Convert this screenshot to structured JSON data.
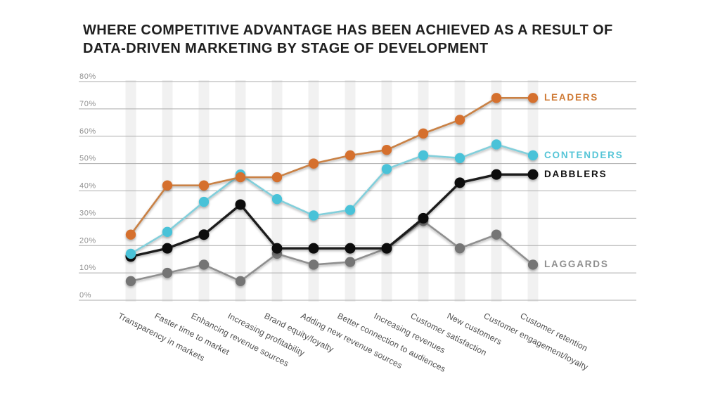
{
  "title": {
    "line1": "WHERE COMPETITIVE ADVANTAGE HAS BEEN ACHIEVED AS A RESULT OF",
    "line2": "DATA-DRIVEN MARKETING BY STAGE OF DEVELOPMENT"
  },
  "colors": {
    "title_text": "#1f1f1f",
    "gridline": "#ababab",
    "ytick_text": "#8f8f8f",
    "xlabel_text": "#4f4f4f",
    "category_band": "#ececec"
  },
  "chart_data": {
    "type": "line",
    "title": "Where competitive advantage has been achieved as a result of data-driven marketing by stage of development",
    "xlabel": "",
    "ylabel": "",
    "ylim": [
      0,
      80
    ],
    "grid": true,
    "legend_position": "right-of-last-point",
    "ytick_labels": [
      "0%",
      "10%",
      "20%",
      "30%",
      "40%",
      "50%",
      "60%",
      "70%",
      "80%"
    ],
    "categories": [
      "Transparency in markets",
      "Faster time to market",
      "Enhancing revenue sources",
      "Increasing profitability",
      "Brand equity/loyalty",
      "Adding new revenue sources",
      "Better connection to audiences",
      "Increasing revenues",
      "Customer satisfaction",
      "New customers",
      "Customer engagement/loyalty",
      "Customer retention"
    ],
    "series": [
      {
        "name": "LEADERS",
        "color": "#d5702d",
        "line_color": "#c98145",
        "legend_color": "#cf7a35",
        "values": [
          24,
          42,
          42,
          45,
          45,
          50,
          53,
          55,
          61,
          66,
          74,
          74
        ]
      },
      {
        "name": "CONTENDERS",
        "color": "#48c2d8",
        "line_color": "#82cfdb",
        "legend_color": "#56c5d7",
        "values": [
          17,
          25,
          36,
          46,
          37,
          31,
          33,
          48,
          53,
          52,
          57,
          53
        ]
      },
      {
        "name": "DABBLERS",
        "color": "#111111",
        "line_color": "#1e1e1e",
        "legend_color": "#121212",
        "values": [
          16,
          19,
          24,
          35,
          19,
          19,
          19,
          19,
          30,
          43,
          46,
          46
        ]
      },
      {
        "name": "LAGGARDS",
        "color": "#757575",
        "line_color": "#8f8f8f",
        "legend_color": "#8e8e8e",
        "values": [
          7,
          10,
          13,
          7,
          17,
          13,
          14,
          19,
          29,
          19,
          24,
          13
        ]
      }
    ]
  }
}
